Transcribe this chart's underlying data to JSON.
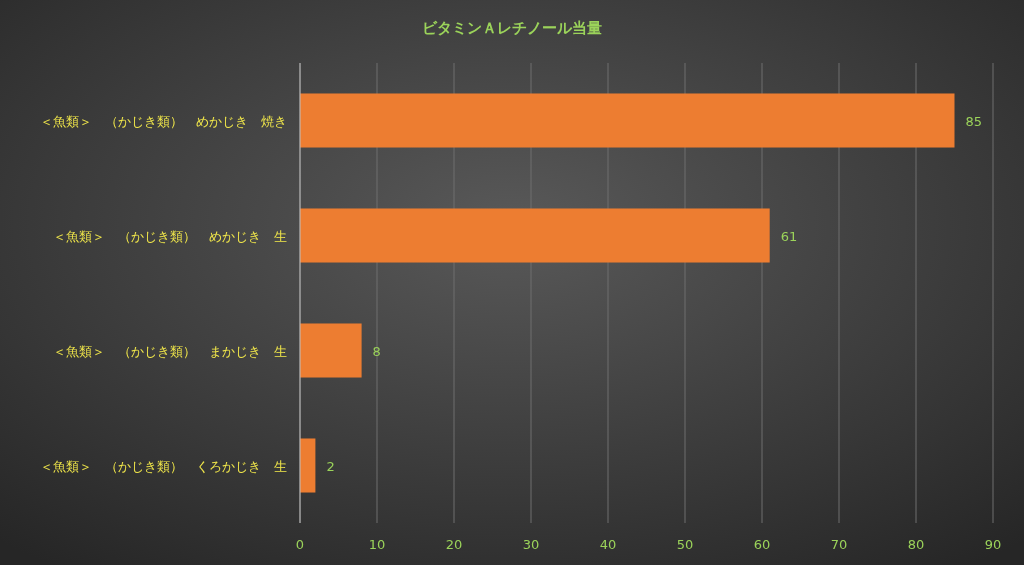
{
  "chart_data": {
    "type": "bar",
    "orientation": "horizontal",
    "title": "ビタミンＡレチノール当量",
    "categories": [
      "＜魚類＞　（かじき類）　めかじき　焼き",
      "＜魚類＞　（かじき類）　めかじき　生",
      "＜魚類＞　（かじき類）　まかじき　生",
      "＜魚類＞　（かじき類）　くろかじき　生"
    ],
    "values": [
      85,
      61,
      8,
      2
    ],
    "color": "#ed7d31",
    "xlim": [
      0,
      90
    ],
    "xticks": [
      0,
      10,
      20,
      30,
      40,
      50,
      60,
      70,
      80,
      90
    ],
    "grid": "x",
    "data_labels": true
  }
}
